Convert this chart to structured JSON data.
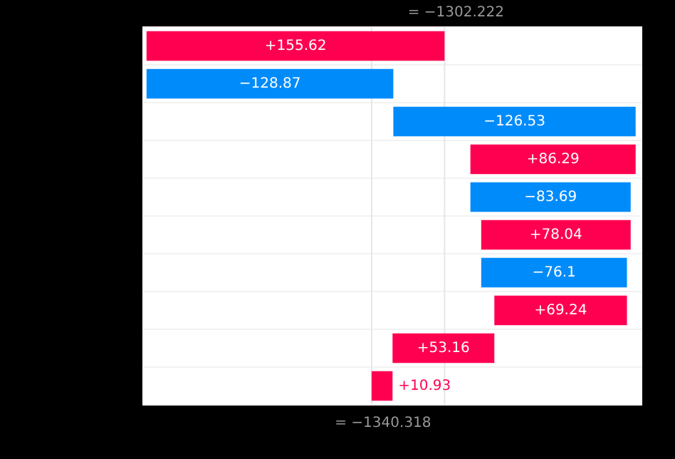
{
  "chart_data": {
    "type": "bar",
    "orientation": "horizontal",
    "categories": [
      null,
      null,
      null,
      null,
      null,
      null,
      null,
      null,
      null,
      null
    ],
    "values": [
      155.62,
      -128.87,
      -126.53,
      86.29,
      -83.69,
      78.04,
      -76.1,
      69.24,
      53.16,
      10.93
    ],
    "base": [
      -1457.848,
      -1328.978,
      -1202.448,
      -1288.738,
      -1205.048,
      -1283.088,
      -1206.988,
      -1276.228,
      -1329.388,
      -1340.318
    ],
    "colors": [
      "#ff0051",
      "#008bfb",
      "#008bfb",
      "#ff0051",
      "#008bfb",
      "#ff0051",
      "#008bfb",
      "#ff0051",
      "#ff0051",
      "#ff0051"
    ],
    "value_labels": [
      "+155.62",
      "−128.87",
      "−126.53",
      "+86.29",
      "−83.69",
      "+78.04",
      "−76.1",
      "+69.24",
      "+53.16",
      "+10.93"
    ],
    "xlim": [
      -1460,
      -1199
    ],
    "ref_lines": [
      {
        "axis": "x",
        "value": -1340.318,
        "color": "#e6e6e6",
        "label": "= −1340.318"
      },
      {
        "axis": "x",
        "value": -1302.222,
        "color": "#e6e6e6",
        "label": "= −1302.222"
      }
    ],
    "grid": "y",
    "legend": false
  }
}
